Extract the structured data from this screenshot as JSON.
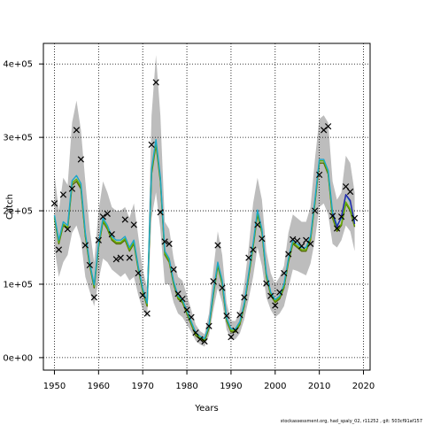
{
  "chart_data": {
    "type": "line",
    "title": "",
    "xlabel": "Years",
    "ylabel": "Catch",
    "xlim": [
      1947.5,
      2021.5
    ],
    "ylim": [
      -17000,
      428000
    ],
    "x_ticks": [
      1950,
      1960,
      1970,
      1980,
      1990,
      2000,
      2010,
      2020
    ],
    "y_ticks": [
      0,
      100000,
      200000,
      300000,
      400000
    ],
    "y_tick_labels": [
      "0e+00",
      "1e+05",
      "2e+05",
      "3e+05",
      "4e+05"
    ],
    "grid": true,
    "grid_style": "dotted",
    "years": [
      1950,
      1951,
      1952,
      1953,
      1954,
      1955,
      1956,
      1957,
      1958,
      1959,
      1960,
      1961,
      1962,
      1963,
      1964,
      1965,
      1966,
      1967,
      1968,
      1969,
      1970,
      1971,
      1972,
      1973,
      1974,
      1975,
      1976,
      1977,
      1978,
      1979,
      1980,
      1981,
      1982,
      1983,
      1984,
      1985,
      1986,
      1987,
      1988,
      1989,
      1990,
      1991,
      1992,
      1993,
      1994,
      1995,
      1996,
      1997,
      1998,
      1999,
      2000,
      2001,
      2002,
      2003,
      2004,
      2005,
      2006,
      2007,
      2008,
      2009,
      2010,
      2011,
      2012,
      2013,
      2014,
      2015,
      2016,
      2017,
      2018
    ],
    "observed": [
      210000,
      147000,
      222000,
      175000,
      230000,
      310000,
      270000,
      153000,
      126000,
      82000,
      160000,
      192000,
      196000,
      168000,
      134000,
      136000,
      188000,
      136000,
      181000,
      115000,
      85000,
      60000,
      290000,
      375000,
      198000,
      158000,
      155000,
      120000,
      87000,
      80000,
      65000,
      55000,
      34000,
      25000,
      22000,
      43000,
      104000,
      153000,
      95000,
      57000,
      28000,
      37000,
      58000,
      82000,
      136000,
      147000,
      181000,
      162000,
      101000,
      84000,
      71000,
      89000,
      115000,
      141000,
      161000,
      159000,
      152000,
      160000,
      155000,
      200000,
      249000,
      310000,
      315000,
      193000,
      176000,
      192000,
      233000,
      226000,
      190000
    ],
    "series": [
      {
        "key": "median",
        "color": "#556b00",
        "values": [
          190000,
          155000,
          180000,
          175000,
          235000,
          240000,
          230000,
          165000,
          125000,
          95000,
          150000,
          185000,
          175000,
          160000,
          155000,
          155000,
          160000,
          145000,
          155000,
          120000,
          90000,
          70000,
          250000,
          290000,
          240000,
          140000,
          130000,
          100000,
          80000,
          75000,
          60000,
          45000,
          30000,
          25000,
          22000,
          40000,
          85000,
          125000,
          100000,
          50000,
          35000,
          35000,
          45000,
          70000,
          110000,
          150000,
          195000,
          170000,
          110000,
          85000,
          75000,
          80000,
          95000,
          130000,
          155000,
          150000,
          145000,
          145000,
          160000,
          210000,
          265000,
          265000,
          250000,
          190000,
          172000,
          180000,
          210000,
          200000,
          178000
        ]
      },
      {
        "key": "mean",
        "color": "#66b200",
        "values": [
          192000,
          157000,
          182000,
          177000,
          238000,
          243000,
          233000,
          167000,
          127000,
          97000,
          152000,
          187000,
          177000,
          162000,
          157000,
          157000,
          162000,
          147000,
          157000,
          122000,
          92000,
          72000,
          253000,
          293000,
          243000,
          142000,
          132000,
          102000,
          82000,
          77000,
          62000,
          47000,
          32000,
          27000,
          24000,
          42000,
          87000,
          127000,
          102000,
          52000,
          37000,
          37000,
          47000,
          72000,
          112000,
          152000,
          198000,
          172000,
          112000,
          87000,
          77000,
          82000,
          97000,
          132000,
          157000,
          152000,
          147000,
          147000,
          162000,
          212000,
          268000,
          268000,
          252000,
          192000,
          174000,
          182000,
          212000,
          202000,
          180000
        ]
      },
      {
        "key": "run-a",
        "color": "#19a7c9",
        "values": [
          194000,
          160000,
          185000,
          180000,
          241000,
          248000,
          237000,
          170000,
          129000,
          99000,
          155000,
          190000,
          180000,
          165000,
          160000,
          160000,
          165000,
          150000,
          160000,
          124000,
          94000,
          74000,
          257000,
          297000,
          246000,
          145000,
          135000,
          104000,
          84000,
          79000,
          64000,
          49000,
          34000,
          29000,
          26000,
          44000,
          90000,
          130000,
          105000,
          54000,
          39000,
          39000,
          49000,
          74000,
          115000,
          155000,
          201000,
          175000,
          115000,
          89000,
          79000,
          84000,
          100000,
          135000,
          160000,
          155000,
          150000,
          150000,
          165000,
          215000,
          270000,
          270000,
          255000,
          198000,
          180000,
          190000,
          222000,
          212000,
          185000
        ]
      },
      {
        "key": "run-b",
        "color": "#2222aa",
        "values": [
          null,
          null,
          null,
          null,
          null,
          null,
          null,
          null,
          null,
          null,
          null,
          null,
          null,
          null,
          null,
          null,
          null,
          null,
          null,
          null,
          null,
          null,
          null,
          null,
          null,
          null,
          null,
          null,
          null,
          null,
          null,
          null,
          null,
          null,
          null,
          null,
          null,
          null,
          null,
          null,
          null,
          null,
          null,
          null,
          null,
          null,
          null,
          null,
          null,
          null,
          null,
          null,
          null,
          null,
          null,
          null,
          null,
          null,
          null,
          null,
          null,
          null,
          null,
          196000,
          178000,
          192000,
          222000,
          214000,
          182000
        ]
      }
    ],
    "band": {
      "color": "#bdbdbd",
      "lower": [
        150000,
        110000,
        130000,
        140000,
        170000,
        180000,
        160000,
        110000,
        90000,
        70000,
        105000,
        135000,
        130000,
        120000,
        115000,
        110000,
        115000,
        105000,
        110000,
        85000,
        65000,
        55000,
        190000,
        225000,
        175000,
        100000,
        100000,
        75000,
        60000,
        55000,
        45000,
        35000,
        23000,
        18000,
        15000,
        30000,
        65000,
        95000,
        75000,
        38000,
        25000,
        25000,
        33000,
        52000,
        80000,
        110000,
        150000,
        125000,
        82000,
        65000,
        55000,
        60000,
        70000,
        95000,
        120000,
        118000,
        115000,
        112000,
        128000,
        160000,
        205000,
        210000,
        195000,
        155000,
        150000,
        160000,
        180000,
        172000,
        145000
      ],
      "upper": [
        250000,
        200000,
        245000,
        235000,
        320000,
        350000,
        310000,
        240000,
        175000,
        130000,
        200000,
        240000,
        225000,
        205000,
        200000,
        200000,
        205000,
        190000,
        210000,
        165000,
        120000,
        95000,
        330000,
        412000,
        330000,
        185000,
        175000,
        135000,
        110000,
        105000,
        85000,
        65000,
        45000,
        36000,
        32000,
        60000,
        120000,
        172000,
        140000,
        75000,
        50000,
        50000,
        65000,
        100000,
        150000,
        210000,
        245000,
        215000,
        145000,
        115000,
        100000,
        110000,
        125000,
        170000,
        195000,
        190000,
        185000,
        185000,
        205000,
        270000,
        325000,
        330000,
        320000,
        240000,
        215000,
        225000,
        275000,
        265000,
        225000
      ]
    }
  },
  "footer": {
    "text": "stockassessment.org, had_spaly_02, r11252 , git: 503cf91af157"
  }
}
